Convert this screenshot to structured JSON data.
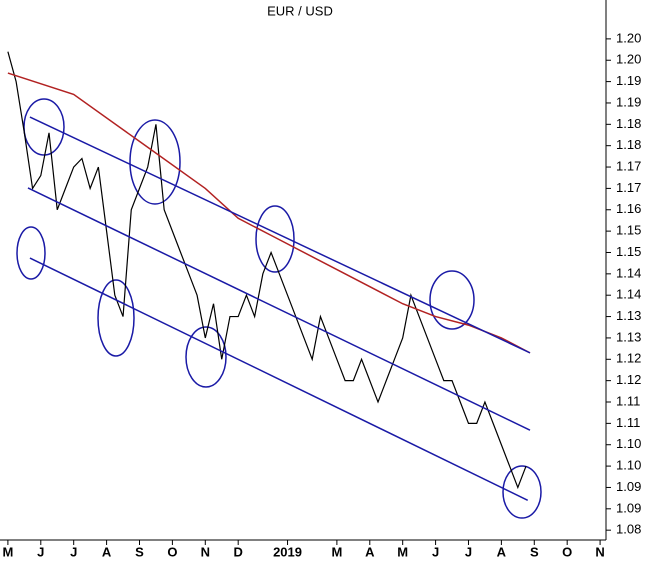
{
  "chart_data": {
    "type": "line",
    "title": "EUR / USD",
    "xlim": [
      -0.24,
      18.18
    ],
    "ylim": [
      1.0827,
      1.2091
    ],
    "xticks": [
      {
        "value": 0,
        "label": "M"
      },
      {
        "value": 1,
        "label": "J"
      },
      {
        "value": 2,
        "label": "J"
      },
      {
        "value": 3,
        "label": "A"
      },
      {
        "value": 4,
        "label": "S"
      },
      {
        "value": 5,
        "label": "O"
      },
      {
        "value": 6,
        "label": "N"
      },
      {
        "value": 7,
        "label": "D"
      },
      {
        "value": 8.5,
        "label": "2019"
      },
      {
        "value": 10,
        "label": "M"
      },
      {
        "value": 11,
        "label": "A"
      },
      {
        "value": 12,
        "label": "M"
      },
      {
        "value": 13,
        "label": "J"
      },
      {
        "value": 14,
        "label": "J"
      },
      {
        "value": 15,
        "label": "A"
      },
      {
        "value": 16,
        "label": "S"
      },
      {
        "value": 17,
        "label": "O"
      },
      {
        "value": 18,
        "label": "N"
      }
    ],
    "yticks": [
      {
        "value": 1.2,
        "label": "1.20"
      },
      {
        "value": 1.195,
        "label": "1.20"
      },
      {
        "value": 1.19,
        "label": "1.19"
      },
      {
        "value": 1.185,
        "label": "1.19"
      },
      {
        "value": 1.18,
        "label": "1.18"
      },
      {
        "value": 1.175,
        "label": "1.18"
      },
      {
        "value": 1.17,
        "label": "1.17"
      },
      {
        "value": 1.165,
        "label": "1.17"
      },
      {
        "value": 1.16,
        "label": "1.16"
      },
      {
        "value": 1.155,
        "label": "1.15"
      },
      {
        "value": 1.15,
        "label": "1.15"
      },
      {
        "value": 1.145,
        "label": "1.14"
      },
      {
        "value": 1.14,
        "label": "1.14"
      },
      {
        "value": 1.135,
        "label": "1.13"
      },
      {
        "value": 1.13,
        "label": "1.13"
      },
      {
        "value": 1.125,
        "label": "1.12"
      },
      {
        "value": 1.12,
        "label": "1.12"
      },
      {
        "value": 1.115,
        "label": "1.11"
      },
      {
        "value": 1.11,
        "label": "1.11"
      },
      {
        "value": 1.105,
        "label": "1.10"
      },
      {
        "value": 1.1,
        "label": "1.10"
      },
      {
        "value": 1.095,
        "label": "1.09"
      },
      {
        "value": 1.09,
        "label": "1.09"
      },
      {
        "value": 1.085,
        "label": "1.08"
      }
    ],
    "series": [
      {
        "color": "#000000",
        "x": [
          0,
          0.25,
          0.5,
          0.75,
          1,
          1.25,
          1.5,
          1.75,
          2,
          2.25,
          2.5,
          2.75,
          3,
          3.25,
          3.5,
          3.75,
          4,
          4.25,
          4.5,
          4.75,
          5,
          5.25,
          5.5,
          5.75,
          6,
          6.25,
          6.5,
          6.75,
          7,
          7.25,
          7.5,
          7.75,
          8,
          8.25,
          8.5,
          8.75,
          9,
          9.25,
          9.5,
          9.75,
          10,
          10.25,
          10.5,
          10.75,
          11,
          11.25,
          11.5,
          11.75,
          12,
          12.25,
          12.5,
          12.75,
          13,
          13.25,
          13.5,
          13.75,
          14,
          14.25,
          14.5,
          14.75,
          15,
          15.25,
          15.5,
          15.75
        ],
        "values": [
          1.197,
          1.19,
          1.178,
          1.165,
          1.168,
          1.178,
          1.16,
          1.165,
          1.17,
          1.172,
          1.165,
          1.17,
          1.155,
          1.14,
          1.135,
          1.16,
          1.165,
          1.17,
          1.18,
          1.16,
          1.155,
          1.15,
          1.145,
          1.14,
          1.13,
          1.138,
          1.125,
          1.135,
          1.135,
          1.14,
          1.135,
          1.145,
          1.15,
          1.145,
          1.14,
          1.135,
          1.13,
          1.125,
          1.135,
          1.13,
          1.125,
          1.12,
          1.12,
          1.125,
          1.12,
          1.115,
          1.12,
          1.125,
          1.13,
          1.14,
          1.135,
          1.13,
          1.125,
          1.12,
          1.12,
          1.115,
          1.11,
          1.11,
          1.115,
          1.11,
          1.105,
          1.1,
          1.095,
          1.1
        ]
      },
      {
        "color": "#b22222",
        "x": [
          0,
          2,
          4,
          6,
          7,
          8,
          10,
          12,
          13,
          14,
          15,
          15.87
        ],
        "values": [
          1.192,
          1.187,
          1.176,
          1.165,
          1.158,
          1.154,
          1.146,
          1.138,
          1.135,
          1.133,
          1.13,
          1.1265
        ]
      },
      {
        "color": "#1a1aa6",
        "x": [
          0.67,
          15.87
        ],
        "values": [
          1.1817,
          1.1265
        ]
      },
      {
        "color": "#1a1aa6",
        "x": [
          0.61,
          15.87
        ],
        "values": [
          1.1651,
          1.1084
        ]
      },
      {
        "color": "#1a1aa6",
        "x": [
          0.67,
          15.8
        ],
        "values": [
          1.1487,
          1.092
        ]
      }
    ]
  }
}
